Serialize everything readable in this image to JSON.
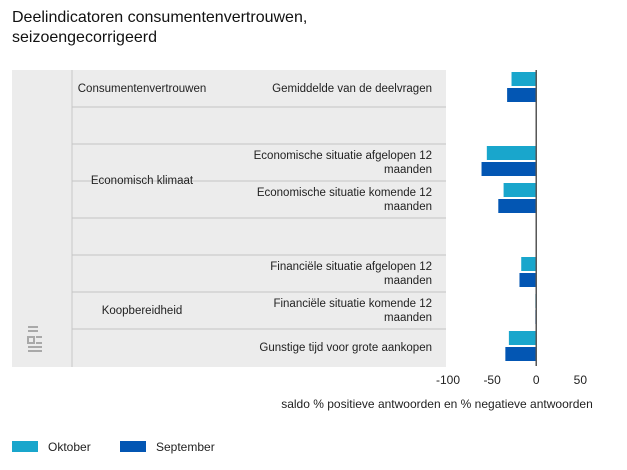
{
  "chart_data": {
    "type": "bar",
    "orientation": "horizontal",
    "title": "Deelindicatoren consumentenvertrouwen, seizoengecorrigeerd",
    "x_label": "saldo % positieve antwoorden en % negatieve antwoorden",
    "groups": [
      {
        "label": "Consumentenvertrouwen",
        "count": 1
      },
      {
        "label": null,
        "count": 1
      },
      {
        "label": "Economisch klimaat",
        "count": 2
      },
      {
        "label": null,
        "count": 1
      },
      {
        "label": "Koopbereidheid",
        "count": 3
      }
    ],
    "categories": [
      "Gemiddelde van de deelvragen",
      null,
      "Economische situatie afgelopen 12 maanden",
      "Economische situatie komende 12 maanden",
      null,
      "Financiële situatie afgelopen 12 maanden",
      "Financiële situatie komende 12 maanden",
      "Gunstige tijd voor grote aankopen"
    ],
    "series": [
      {
        "name": "Oktober",
        "color": "#19a6cc",
        "values": [
          -28,
          null,
          -56,
          -37,
          null,
          -17,
          -1,
          -31
        ]
      },
      {
        "name": "September",
        "color": "#0356b3",
        "values": [
          -33,
          null,
          -62,
          -43,
          null,
          -19,
          -1,
          -35
        ]
      }
    ],
    "xlim": [
      -100,
      70
    ],
    "xticks": [
      -100,
      -50,
      0,
      50
    ],
    "grid": false
  }
}
